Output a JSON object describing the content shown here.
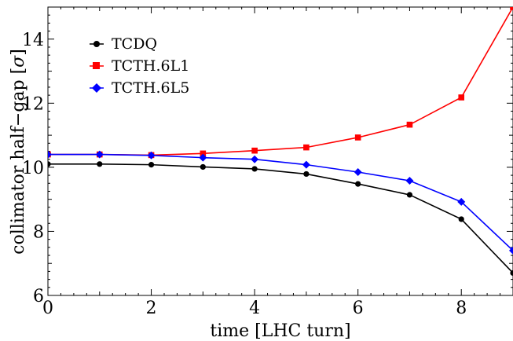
{
  "chart_data": {
    "type": "line",
    "xlabel": "time [LHC turn]",
    "ylabel": "collimator half−gap [",
    "ylabel_sym": "σ",
    "ylabel_end": "]",
    "xlim": [
      0,
      9
    ],
    "ylim": [
      6,
      15
    ],
    "x_ticks": [
      "0",
      "2",
      "4",
      "6",
      "8"
    ],
    "y_ticks": [
      "6",
      "8",
      "10",
      "12",
      "14"
    ],
    "x": [
      0,
      1,
      2,
      3,
      4,
      5,
      6,
      7,
      8,
      9
    ],
    "legend_position": "top-left",
    "series": [
      {
        "name": "TCDQ",
        "color": "#000000",
        "marker": "circle",
        "values": [
          10.1,
          10.1,
          10.08,
          10.01,
          9.95,
          9.79,
          9.48,
          9.14,
          8.38,
          6.7
        ]
      },
      {
        "name": "TCTH.6L1",
        "color": "#ff0000",
        "marker": "square",
        "values": [
          10.4,
          10.4,
          10.38,
          10.43,
          10.52,
          10.62,
          10.93,
          11.33,
          12.18,
          15.0
        ]
      },
      {
        "name": "TCTH.6L5",
        "color": "#0000ff",
        "marker": "diamond",
        "values": [
          10.4,
          10.4,
          10.37,
          10.3,
          10.25,
          10.08,
          9.85,
          9.58,
          8.92,
          7.4
        ]
      }
    ]
  }
}
